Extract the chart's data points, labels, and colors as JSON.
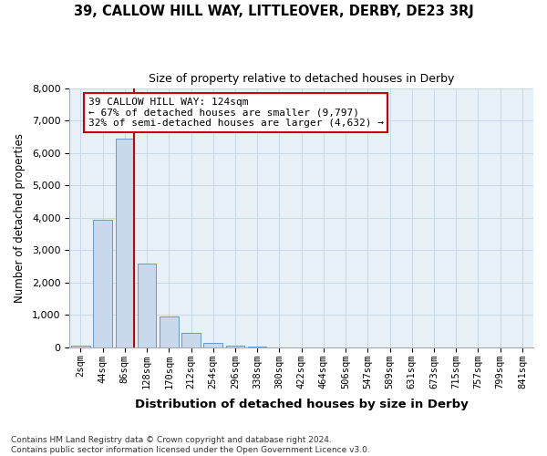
{
  "title1": "39, CALLOW HILL WAY, LITTLEOVER, DERBY, DE23 3RJ",
  "title2": "Size of property relative to detached houses in Derby",
  "xlabel": "Distribution of detached houses by size in Derby",
  "ylabel": "Number of detached properties",
  "footnote": "Contains HM Land Registry data © Crown copyright and database right 2024.\nContains public sector information licensed under the Open Government Licence v3.0.",
  "bin_labels": [
    "2sqm",
    "44sqm",
    "86sqm",
    "128sqm",
    "170sqm",
    "212sqm",
    "254sqm",
    "296sqm",
    "338sqm",
    "380sqm",
    "422sqm",
    "464sqm",
    "506sqm",
    "547sqm",
    "589sqm",
    "631sqm",
    "673sqm",
    "715sqm",
    "757sqm",
    "799sqm",
    "841sqm"
  ],
  "bar_values": [
    50,
    3950,
    6450,
    2600,
    950,
    430,
    130,
    50,
    15,
    5,
    0,
    0,
    0,
    0,
    0,
    0,
    0,
    0,
    0,
    0,
    0
  ],
  "bar_color": "#c9d9ec",
  "bar_edge_color": "#6699cc",
  "property_sqm": 124,
  "property_bin_index": 2,
  "red_line_color": "#cc0000",
  "annotation_line1": "39 CALLOW HILL WAY: 124sqm",
  "annotation_line2": "← 67% of detached houses are smaller (9,797)",
  "annotation_line3": "32% of semi-detached houses are larger (4,632) →",
  "annotation_box_color": "#ffffff",
  "annotation_box_edge_color": "#cc0000",
  "grid_color": "#c8d8e8",
  "background_color": "#e8f0f8",
  "ylim": [
    0,
    8000
  ],
  "yticks": [
    0,
    1000,
    2000,
    3000,
    4000,
    5000,
    6000,
    7000,
    8000
  ]
}
